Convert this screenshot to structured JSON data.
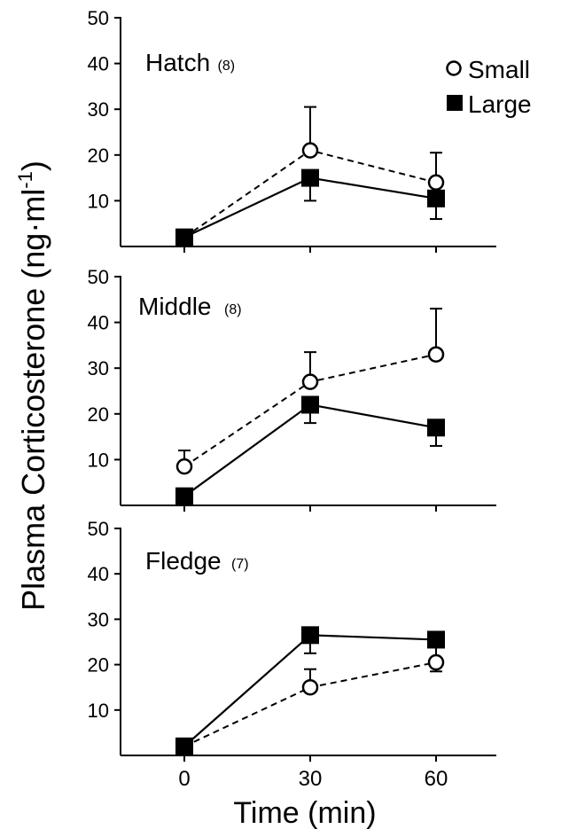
{
  "chart_data": {
    "type": "line",
    "ylabel": "Plasma Corticosterone (ng·ml",
    "ylabel_superscript": "-1",
    "ylabel_close": ")",
    "xlabel": "Time (min)",
    "x_ticks": [
      "0",
      "30",
      "60"
    ],
    "x": [
      0,
      30,
      60
    ],
    "xlim": [
      -12,
      75
    ],
    "ylim": [
      0,
      50
    ],
    "y_ticks": [
      "10",
      "20",
      "30",
      "40",
      "50"
    ],
    "legend": {
      "placement": "top-right",
      "items": [
        {
          "label": "Small",
          "marker": "open-circle",
          "line": "dashed"
        },
        {
          "label": "Large",
          "marker": "filled-square",
          "line": "solid"
        }
      ]
    },
    "panels": [
      {
        "title": "Hatch",
        "n": "(8)",
        "series": [
          {
            "name": "Small",
            "values": [
              2,
              21,
              14
            ],
            "errors": [
              0,
              9.5,
              6.5
            ]
          },
          {
            "name": "Large",
            "values": [
              2,
              15,
              10.5
            ],
            "errors": [
              0,
              5,
              4.5
            ]
          }
        ]
      },
      {
        "title": "Middle",
        "n": "(8)",
        "series": [
          {
            "name": "Small",
            "values": [
              8.5,
              27,
              33
            ],
            "errors": [
              3.5,
              6.5,
              10
            ]
          },
          {
            "name": "Large",
            "values": [
              2,
              22,
              17
            ],
            "errors": [
              0,
              4,
              4
            ]
          }
        ]
      },
      {
        "title": "Fledge",
        "n": "(7)",
        "series": [
          {
            "name": "Small",
            "values": [
              2,
              15,
              20.5
            ],
            "errors": [
              0,
              4,
              5.5
            ]
          },
          {
            "name": "Large",
            "values": [
              2,
              26.5,
              25.5
            ],
            "errors": [
              0,
              4,
              7
            ]
          }
        ]
      }
    ]
  }
}
